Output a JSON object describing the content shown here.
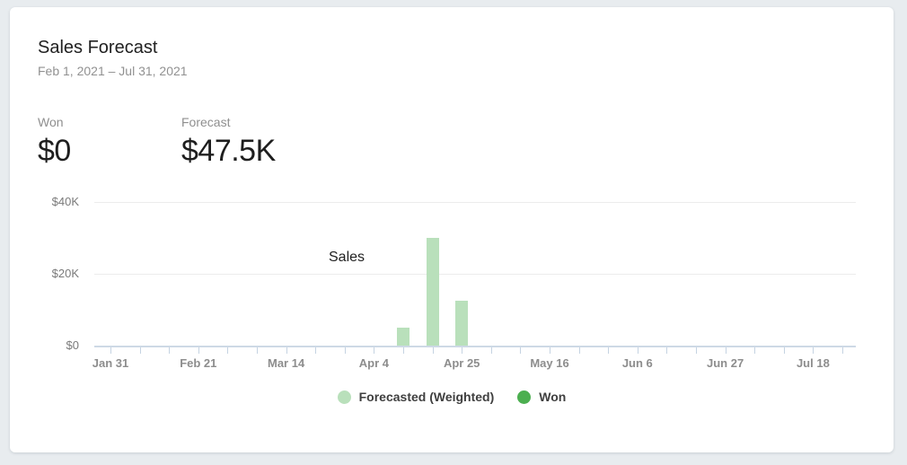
{
  "card": {
    "title": "Sales Forecast",
    "date_range": "Feb 1, 2021 – Jul 31, 2021"
  },
  "stats": {
    "won": {
      "label": "Won",
      "value": "$0"
    },
    "forecast": {
      "label": "Forecast",
      "value": "$47.5K"
    }
  },
  "filter": {
    "selected": "Sales"
  },
  "legend": [
    {
      "label": "Forecasted (Weighted)",
      "color": "#b9e0bb"
    },
    {
      "label": "Won",
      "color": "#4caf50"
    }
  ],
  "chart_data": {
    "type": "bar",
    "x": [
      "Jan 31",
      "Feb 7",
      "Feb 14",
      "Feb 21",
      "Feb 28",
      "Mar 7",
      "Mar 14",
      "Mar 21",
      "Mar 28",
      "Apr 4",
      "Apr 11",
      "Apr 18",
      "Apr 25",
      "May 2",
      "May 9",
      "May 16",
      "May 23",
      "May 30",
      "Jun 6",
      "Jun 13",
      "Jun 20",
      "Jun 27",
      "Jul 4",
      "Jul 11",
      "Jul 18",
      "Jul 25"
    ],
    "x_label_every": 3,
    "x_axis_labels_visible": [
      "Jan 31",
      "Feb 21",
      "Mar 14",
      "Apr 4",
      "Apr 25",
      "May 16",
      "Jun 6",
      "Jun 27",
      "Jul 18"
    ],
    "y_ticks": [
      {
        "label": "$0",
        "value": 0
      },
      {
        "label": "$20K",
        "value": 20000
      },
      {
        "label": "$40K",
        "value": 40000
      }
    ],
    "ylim": [
      0,
      40000
    ],
    "grid": "horizontal",
    "legend_position": "bottom",
    "series": [
      {
        "name": "Forecasted (Weighted)",
        "color": "#b9e0bb",
        "points": [
          {
            "x": "Apr 11",
            "y": 5000
          },
          {
            "x": "Apr 18",
            "y": 30000
          },
          {
            "x": "Apr 25",
            "y": 12500
          }
        ]
      },
      {
        "name": "Won",
        "color": "#4caf50",
        "points": []
      }
    ]
  }
}
